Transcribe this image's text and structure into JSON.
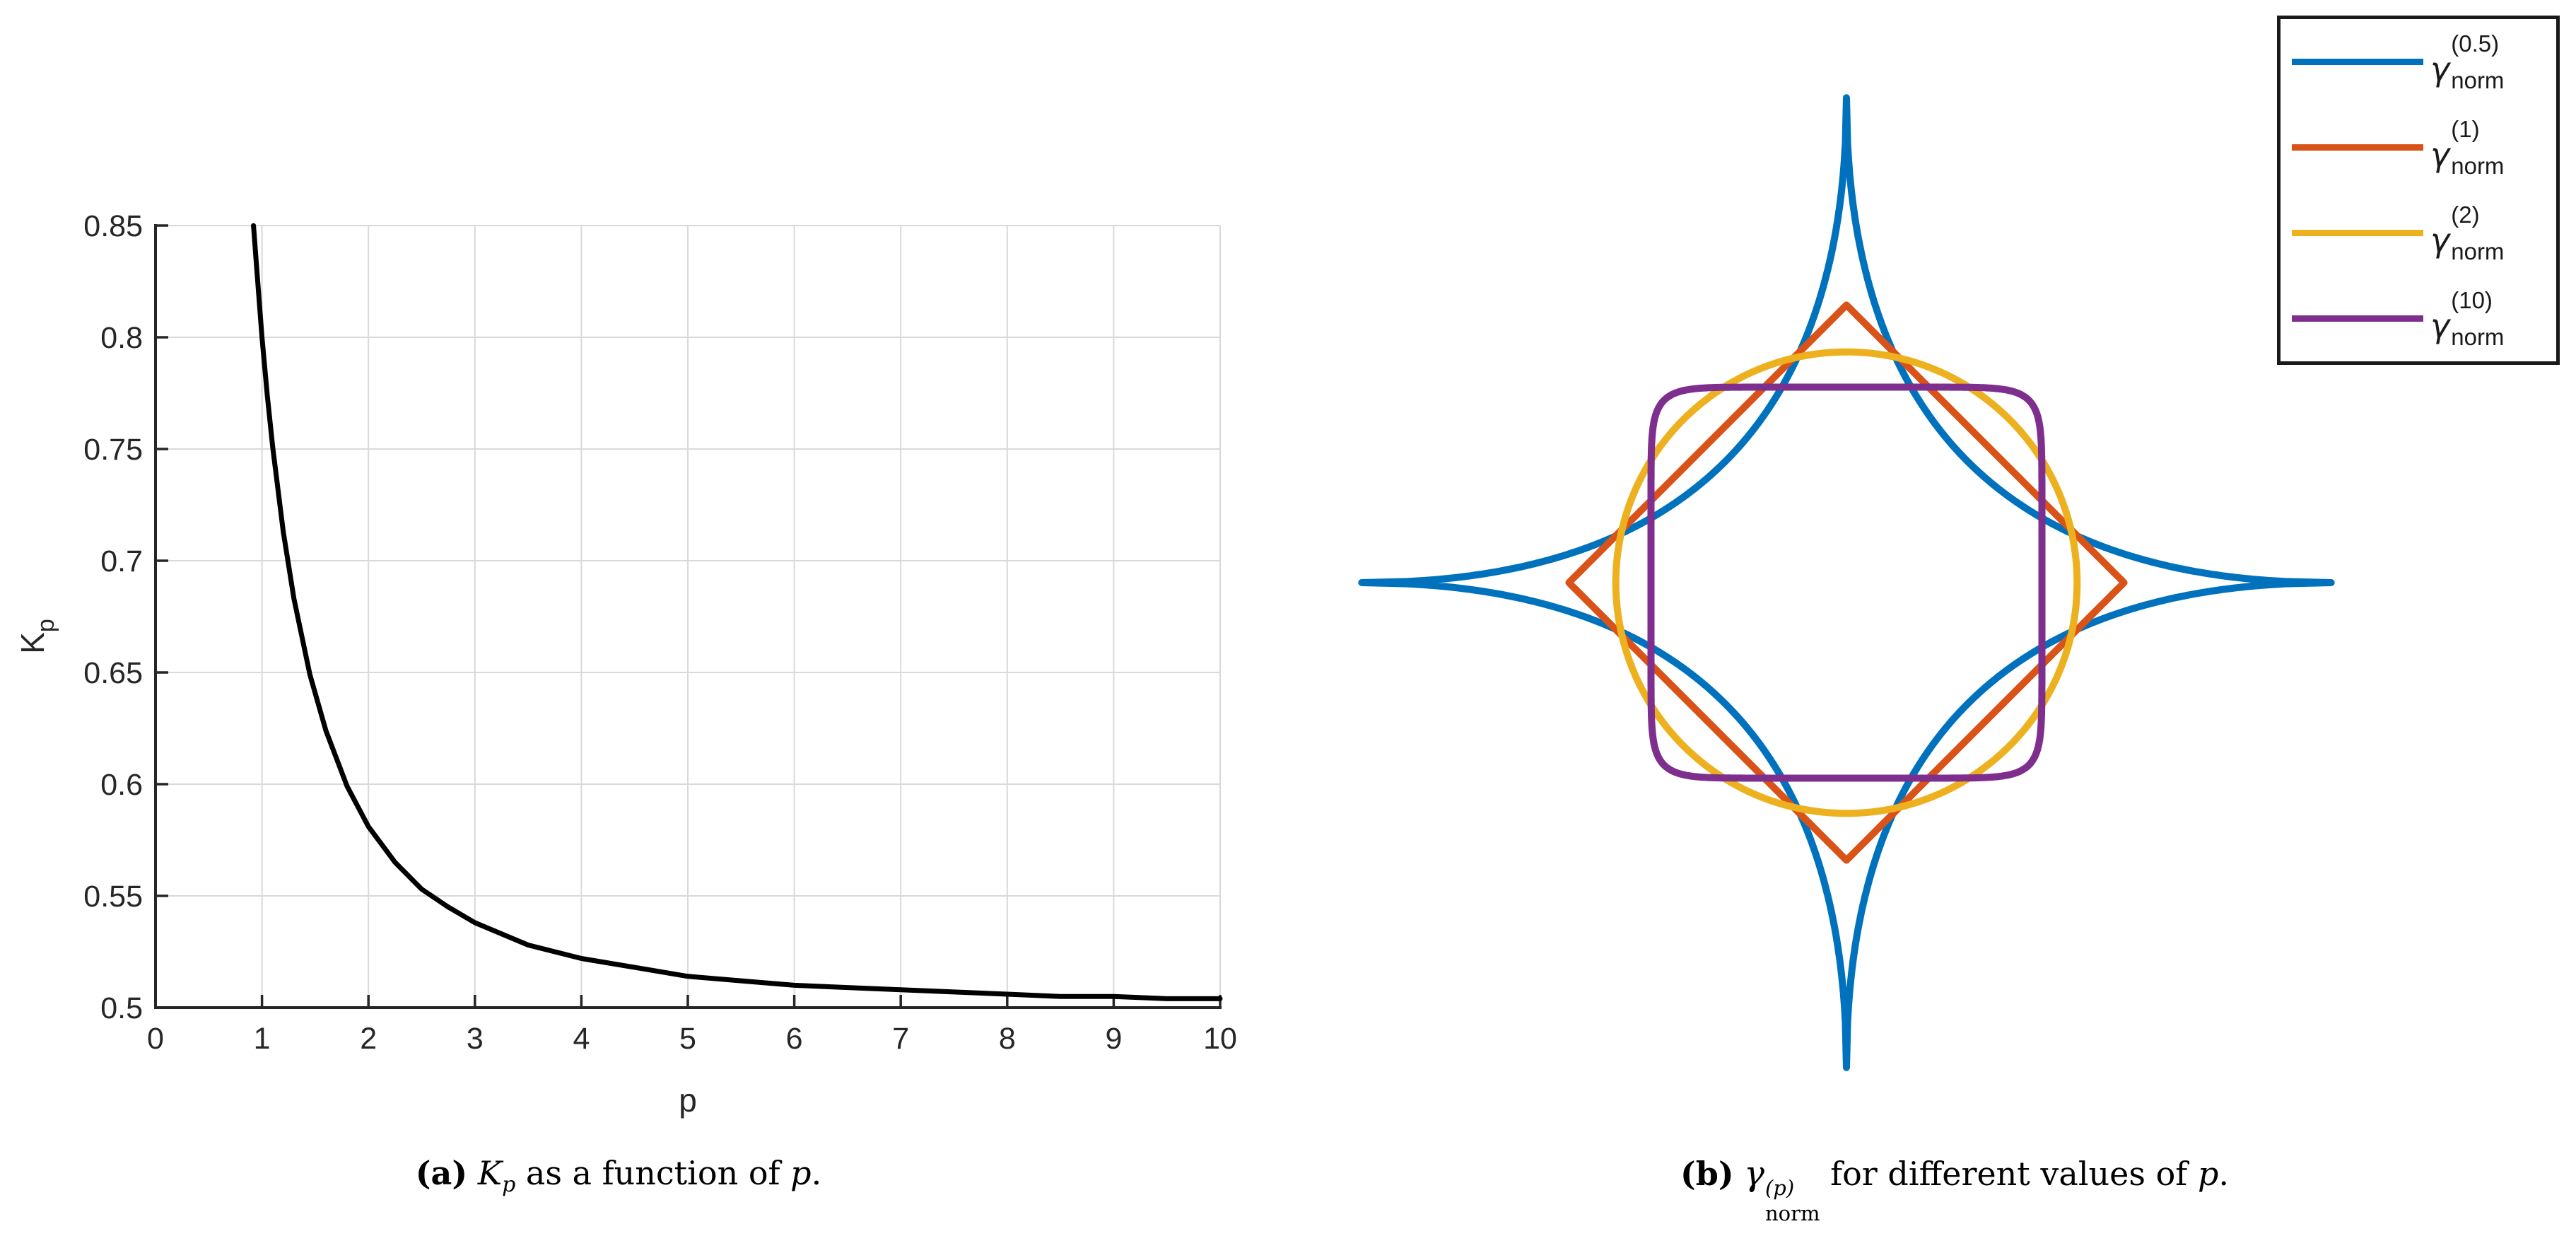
{
  "page": {
    "background": "#ffffff"
  },
  "colors": {
    "axis": "#262626",
    "grid": "#d9d9d9",
    "curve": "#000000",
    "matlab_blue": "#0072BD",
    "matlab_orange": "#D95319",
    "matlab_yellow": "#EDB120",
    "matlab_purple": "#7E2F8E",
    "legend_border": "#1a1a1a"
  },
  "plot_a": {
    "xlabel": "p",
    "ylabel_base": "K",
    "ylabel_sub": "p",
    "x_tick_labels": [
      "0",
      "1",
      "2",
      "3",
      "4",
      "5",
      "6",
      "7",
      "8",
      "9",
      "10"
    ],
    "y_tick_labels": [
      "0.5",
      "0.55",
      "0.6",
      "0.65",
      "0.7",
      "0.75",
      "0.8",
      "0.85"
    ]
  },
  "plot_b": {
    "legend": [
      {
        "gamma": "γ",
        "sup": "(0.5)",
        "sub": "norm",
        "color": "#0072BD"
      },
      {
        "gamma": "γ",
        "sup": "(1)",
        "sub": "norm",
        "color": "#D95319"
      },
      {
        "gamma": "γ",
        "sup": "(2)",
        "sub": "norm",
        "color": "#EDB120"
      },
      {
        "gamma": "γ",
        "sup": "(10)",
        "sub": "norm",
        "color": "#7E2F8E"
      }
    ]
  },
  "captions": {
    "a": {
      "tag": "(a)",
      "term": "K",
      "term_sub": "p",
      "middle": " as a function of ",
      "variable": "p",
      "period": "."
    },
    "b": {
      "tag": "(b)",
      "gamma": "γ",
      "sup": "(p)",
      "sub": "norm",
      "middle": " for different values of ",
      "variable": "p",
      "period": "."
    }
  },
  "chart_data": [
    {
      "type": "line",
      "title": "",
      "xlabel": "p",
      "ylabel": "K_p",
      "xlim": [
        0,
        10
      ],
      "ylim": [
        0.5,
        0.85
      ],
      "x_ticks": [
        0,
        1,
        2,
        3,
        4,
        5,
        6,
        7,
        8,
        9,
        10
      ],
      "y_ticks": [
        0.5,
        0.55,
        0.6,
        0.65,
        0.7,
        0.75,
        0.8,
        0.85
      ],
      "grid": true,
      "legend_position": "none",
      "series": [
        {
          "name": "K_p",
          "color": "#000000",
          "points": [
            [
              0.92,
              0.85
            ],
            [
              0.95,
              0.831
            ],
            [
              1.0,
              0.8
            ],
            [
              1.05,
              0.774
            ],
            [
              1.1,
              0.751
            ],
            [
              1.2,
              0.713
            ],
            [
              1.3,
              0.683
            ],
            [
              1.45,
              0.649
            ],
            [
              1.6,
              0.624
            ],
            [
              1.8,
              0.599
            ],
            [
              2.0,
              0.581
            ],
            [
              2.25,
              0.565
            ],
            [
              2.5,
              0.553
            ],
            [
              2.75,
              0.545
            ],
            [
              3.0,
              0.538
            ],
            [
              3.5,
              0.528
            ],
            [
              4.0,
              0.522
            ],
            [
              4.5,
              0.518
            ],
            [
              5.0,
              0.514
            ],
            [
              5.5,
              0.512
            ],
            [
              6.0,
              0.51
            ],
            [
              6.5,
              0.509
            ],
            [
              7.0,
              0.508
            ],
            [
              7.5,
              0.507
            ],
            [
              8.0,
              0.506
            ],
            [
              8.5,
              0.505
            ],
            [
              9.0,
              0.505
            ],
            [
              9.5,
              0.504
            ],
            [
              10.0,
              0.504
            ]
          ]
        }
      ]
    },
    {
      "type": "line",
      "subtype": "polar-superellipse",
      "title": "",
      "axes": "off",
      "grid": false,
      "legend_position": "top-right",
      "formula": "r(theta) = K * (|cos(theta)|^p + |sin(theta)|^p)^(-1/p)",
      "series": [
        {
          "name": "γ_norm^(0.5)",
          "p": 0.5,
          "K": 1.24,
          "color": "#0072BD"
        },
        {
          "name": "γ_norm^(1)",
          "p": 1,
          "K": 0.71,
          "color": "#D95319"
        },
        {
          "name": "γ_norm^(2)",
          "p": 2,
          "K": 0.59,
          "color": "#EDB120"
        },
        {
          "name": "γ_norm^(10)",
          "p": 10,
          "K": 0.5,
          "color": "#7E2F8E"
        }
      ]
    }
  ]
}
